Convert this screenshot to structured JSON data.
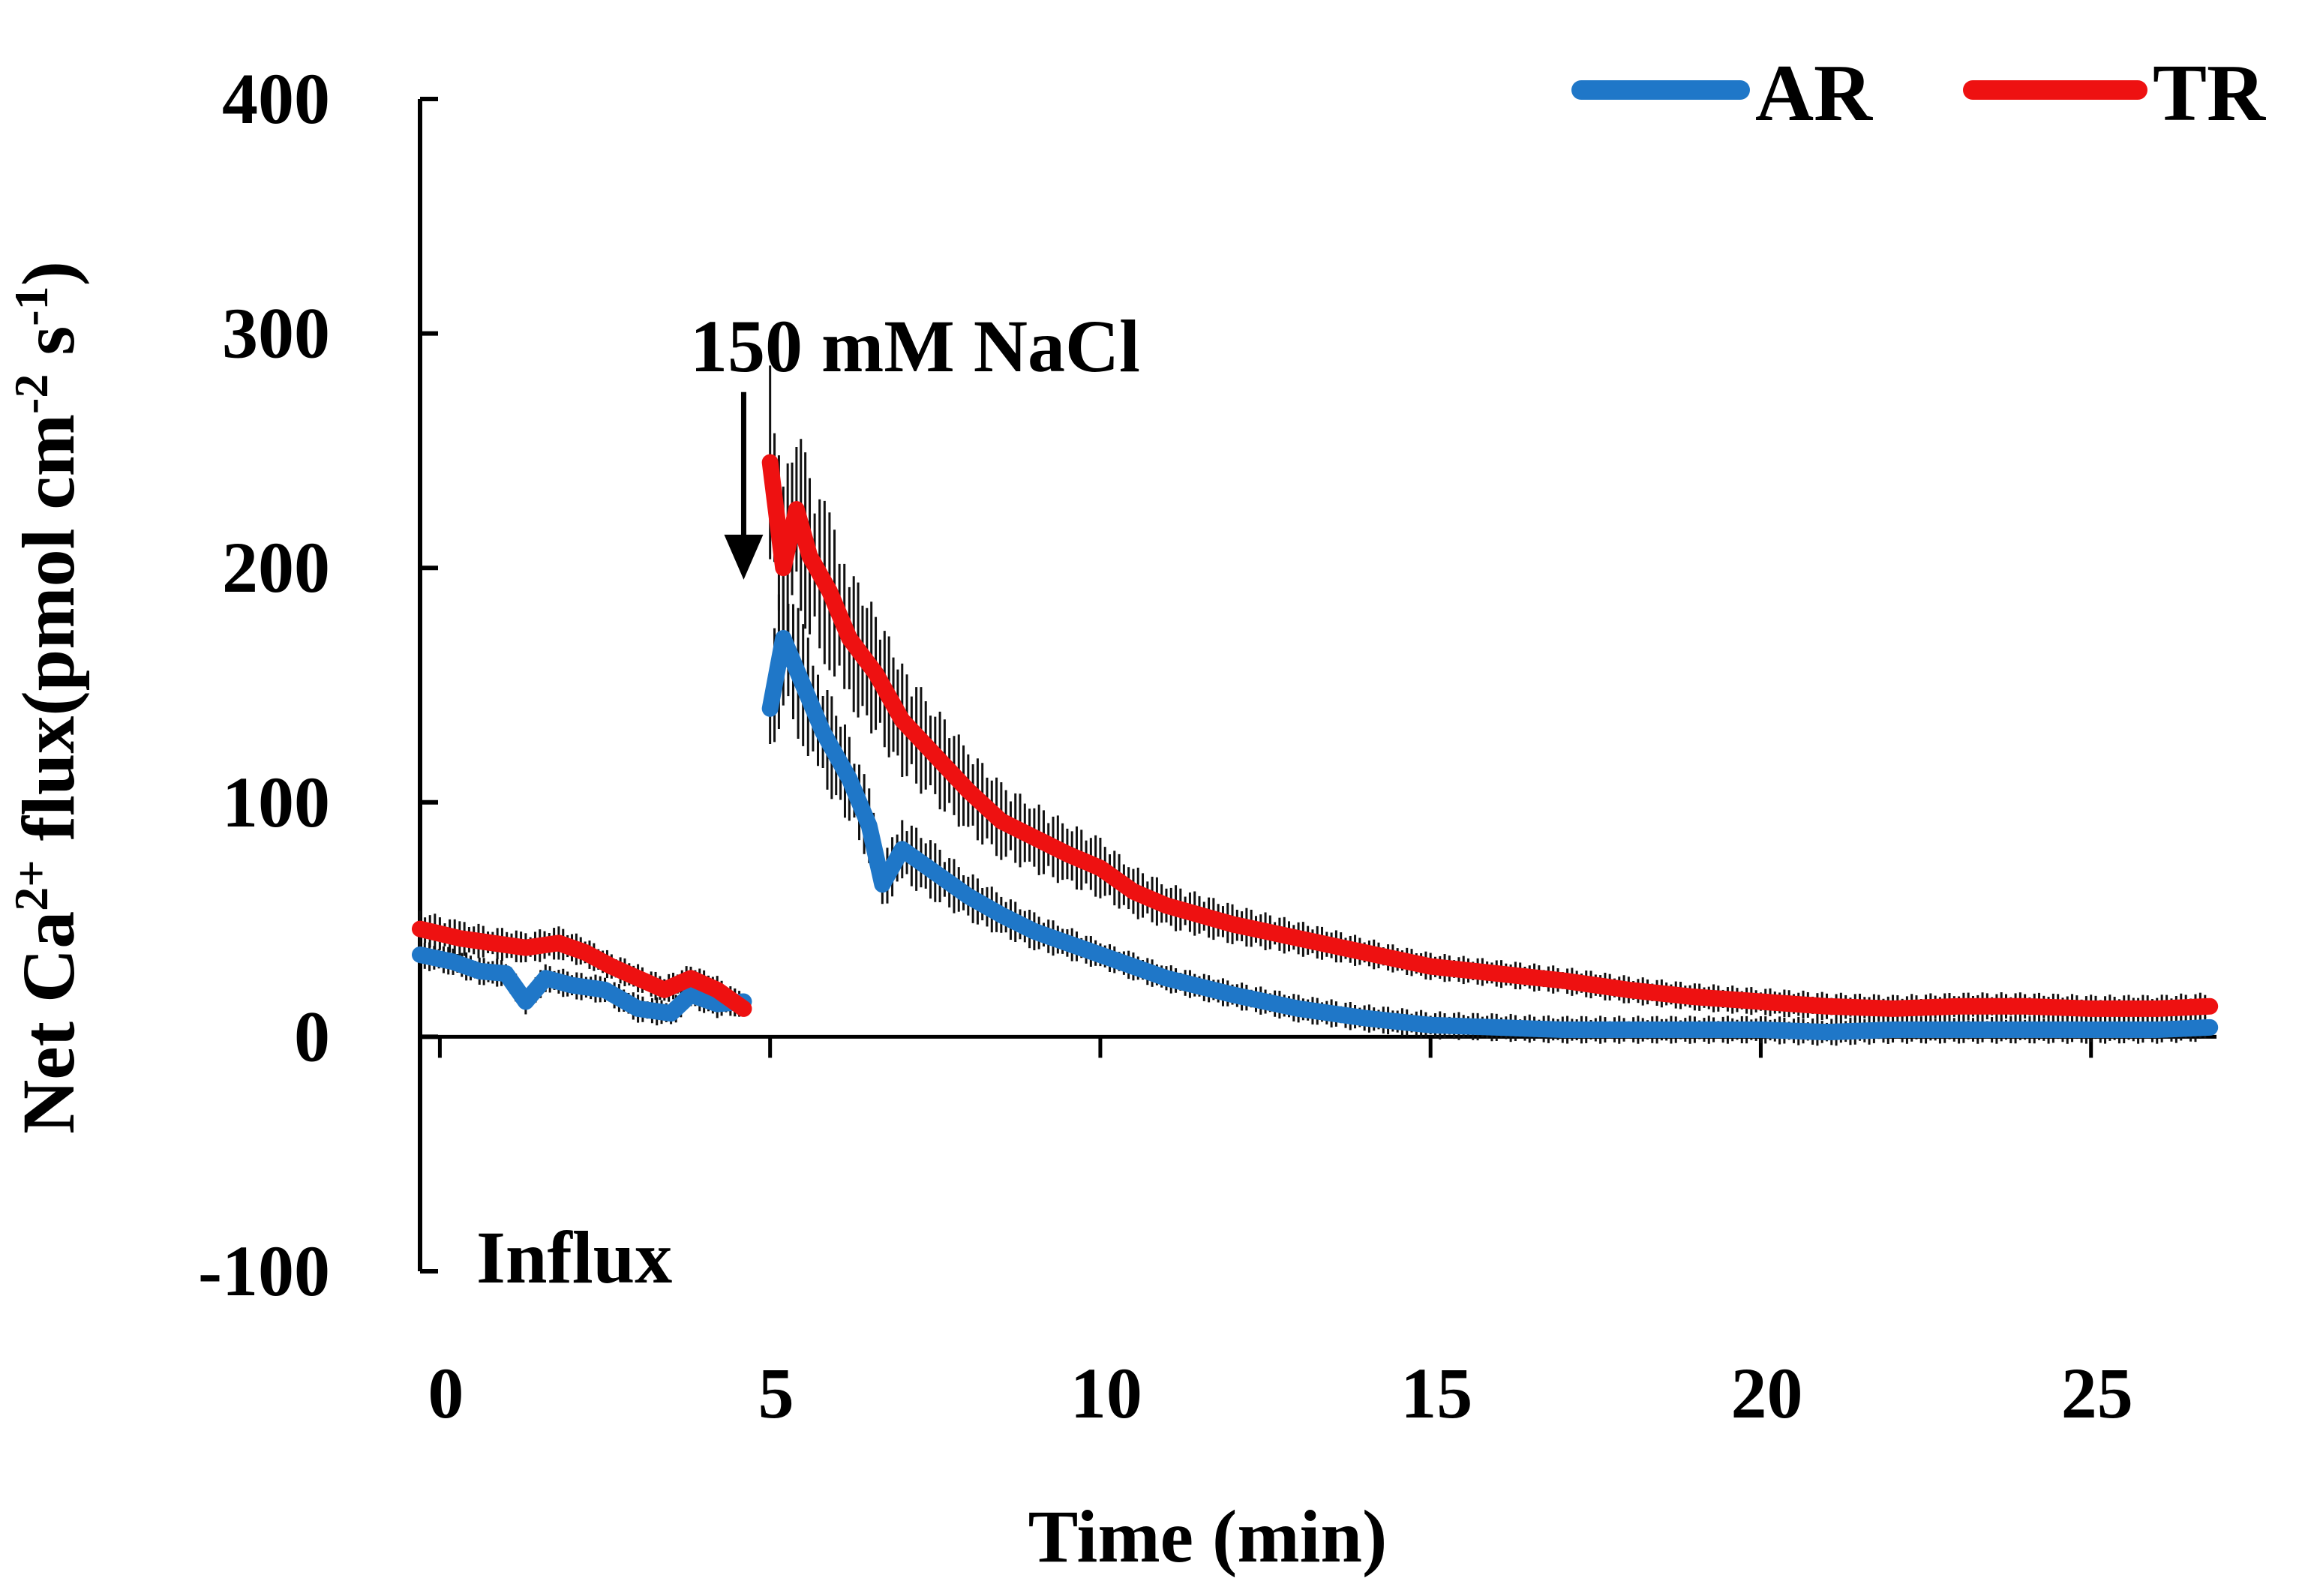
{
  "chart_data": {
    "type": "line",
    "title": "",
    "xlabel": "Time (min)",
    "ylabel_parts": [
      "Net Ca",
      "2+",
      " flux(pmol cm",
      "-2",
      " s",
      "-1",
      ")"
    ],
    "xlim": [
      -0.3,
      26.9
    ],
    "ylim": [
      -100,
      400
    ],
    "xticks": [
      0,
      5,
      10,
      15,
      20,
      25
    ],
    "yticks": [
      -100,
      0,
      100,
      200,
      300,
      400
    ],
    "legend_position": "top-right",
    "annotations": {
      "treatment": "150 mM NaCl",
      "treatment_time": 4.6,
      "treatment_arrow_from": 275,
      "treatment_arrow_to": 195,
      "direction": "Influx"
    },
    "series": [
      {
        "name": "AR",
        "color": "#1F77C8",
        "segments": [
          {
            "x": [
              -0.3,
              0.2,
              0.6,
              1.0,
              1.3,
              1.6,
              2.0,
              2.5,
              3.0,
              3.5,
              3.8,
              4.2,
              4.6
            ],
            "y": [
              35,
              32,
              28,
              27,
              15,
              25,
              22,
              20,
              12,
              10,
              18,
              14,
              15
            ]
          },
          {
            "x": [
              5.0,
              5.2,
              5.5,
              5.8,
              6.2,
              6.5,
              6.7,
              7.0,
              7.5,
              8.0,
              8.5,
              9.0,
              9.5,
              10.0,
              10.5,
              11.0,
              12.0,
              13.0,
              14.0,
              15.0,
              16.0,
              17.0,
              18.0,
              19.0,
              20.0,
              21.0,
              22.0,
              23.0,
              24.0,
              25.0,
              26.0,
              26.8
            ],
            "y": [
              140,
              170,
              150,
              130,
              110,
              90,
              65,
              80,
              70,
              60,
              52,
              45,
              40,
              35,
              30,
              25,
              18,
              12,
              8,
              5,
              4,
              3,
              3,
              3,
              3,
              2,
              3,
              3,
              3,
              3,
              3,
              4
            ]
          }
        ]
      },
      {
        "name": "TR",
        "color": "#EE1111",
        "segments": [
          {
            "x": [
              -0.3,
              0.3,
              0.8,
              1.3,
              1.8,
              2.2,
              2.6,
              3.0,
              3.4,
              3.8,
              4.2,
              4.6
            ],
            "y": [
              46,
              42,
              40,
              38,
              40,
              36,
              30,
              25,
              20,
              25,
              20,
              12
            ]
          },
          {
            "x": [
              5.0,
              5.2,
              5.4,
              5.6,
              5.9,
              6.2,
              6.6,
              7.0,
              7.5,
              8.0,
              8.5,
              9.0,
              9.5,
              10.0,
              10.5,
              11.0,
              12.0,
              13.0,
              14.0,
              15.0,
              16.0,
              17.0,
              18.0,
              19.0,
              20.0,
              21.0,
              22.0,
              23.0,
              24.0,
              25.0,
              26.0,
              26.8
            ],
            "y": [
              245,
              200,
              225,
              205,
              190,
              170,
              155,
              135,
              120,
              105,
              92,
              85,
              78,
              72,
              62,
              56,
              48,
              42,
              36,
              30,
              27,
              24,
              20,
              17,
              15,
              13,
              12,
              13,
              13,
              12,
              12,
              13
            ]
          }
        ]
      }
    ]
  }
}
